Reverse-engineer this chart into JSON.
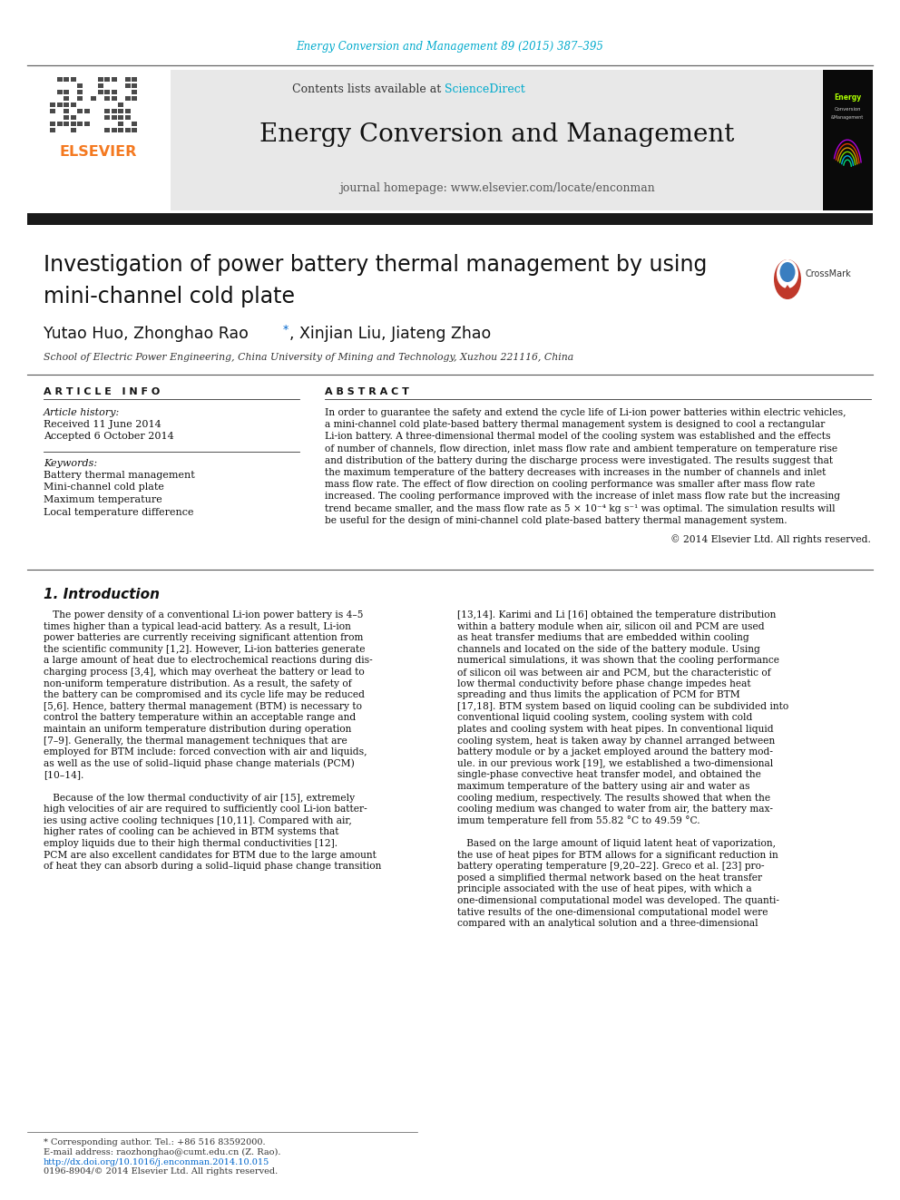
{
  "journal_ref": "Energy Conversion and Management 89 (2015) 387–395",
  "journal_ref_color": "#00aacc",
  "contents_line": "Contents lists available at ",
  "sciencedirect": "ScienceDirect",
  "sciencedirect_color": "#00aacc",
  "journal_name": "Energy Conversion and Management",
  "journal_homepage": "journal homepage: www.elsevier.com/locate/enconman",
  "title_line1": "Investigation of power battery thermal management by using",
  "title_line2": "mini-channel cold plate",
  "authors_left": "Yutao Huo, Zhonghao Rao",
  "authors_right": ", Xinjian Liu, Jiateng Zhao",
  "affiliation": "School of Electric Power Engineering, China University of Mining and Technology, Xuzhou 221116, China",
  "article_info_header": "A R T I C L E   I N F O",
  "abstract_header": "A B S T R A C T",
  "article_history_label": "Article history:",
  "received": "Received 11 June 2014",
  "accepted": "Accepted 6 October 2014",
  "keywords_label": "Keywords:",
  "keywords": [
    "Battery thermal management",
    "Mini-channel cold plate",
    "Maximum temperature",
    "Local temperature difference"
  ],
  "abstract_lines": [
    "In order to guarantee the safety and extend the cycle life of Li-ion power batteries within electric vehicles,",
    "a mini-channel cold plate-based battery thermal management system is designed to cool a rectangular",
    "Li-ion battery. A three-dimensional thermal model of the cooling system was established and the effects",
    "of number of channels, flow direction, inlet mass flow rate and ambient temperature on temperature rise",
    "and distribution of the battery during the discharge process were investigated. The results suggest that",
    "the maximum temperature of the battery decreases with increases in the number of channels and inlet",
    "mass flow rate. The effect of flow direction on cooling performance was smaller after mass flow rate",
    "increased. The cooling performance improved with the increase of inlet mass flow rate but the increasing",
    "trend became smaller, and the mass flow rate as 5 × 10⁻⁴ kg s⁻¹ was optimal. The simulation results will",
    "be useful for the design of mini-channel cold plate-based battery thermal management system."
  ],
  "copyright": "© 2014 Elsevier Ltd. All rights reserved.",
  "intro_header": "1. Introduction",
  "intro_col1_lines": [
    "   The power density of a conventional Li-ion power battery is 4–5",
    "times higher than a typical lead-acid battery. As a result, Li-ion",
    "power batteries are currently receiving significant attention from",
    "the scientific community [1,2]. However, Li-ion batteries generate",
    "a large amount of heat due to electrochemical reactions during dis-",
    "charging process [3,4], which may overheat the battery or lead to",
    "non-uniform temperature distribution. As a result, the safety of",
    "the battery can be compromised and its cycle life may be reduced",
    "[5,6]. Hence, battery thermal management (BTM) is necessary to",
    "control the battery temperature within an acceptable range and",
    "maintain an uniform temperature distribution during operation",
    "[7–9]. Generally, the thermal management techniques that are",
    "employed for BTM include: forced convection with air and liquids,",
    "as well as the use of solid–liquid phase change materials (PCM)",
    "[10–14].",
    "",
    "   Because of the low thermal conductivity of air [15], extremely",
    "high velocities of air are required to sufficiently cool Li-ion batter-",
    "ies using active cooling techniques [10,11]. Compared with air,",
    "higher rates of cooling can be achieved in BTM systems that",
    "employ liquids due to their high thermal conductivities [12].",
    "PCM are also excellent candidates for BTM due to the large amount",
    "of heat they can absorb during a solid–liquid phase change transition"
  ],
  "intro_col2_lines": [
    "[13,14]. Karimi and Li [16] obtained the temperature distribution",
    "within a battery module when air, silicon oil and PCM are used",
    "as heat transfer mediums that are embedded within cooling",
    "channels and located on the side of the battery module. Using",
    "numerical simulations, it was shown that the cooling performance",
    "of silicon oil was between air and PCM, but the characteristic of",
    "low thermal conductivity before phase change impedes heat",
    "spreading and thus limits the application of PCM for BTM",
    "[17,18]. BTM system based on liquid cooling can be subdivided into",
    "conventional liquid cooling system, cooling system with cold",
    "plates and cooling system with heat pipes. In conventional liquid",
    "cooling system, heat is taken away by channel arranged between",
    "battery module or by a jacket employed around the battery mod-",
    "ule. in our previous work [19], we established a two-dimensional",
    "single-phase convective heat transfer model, and obtained the",
    "maximum temperature of the battery using air and water as",
    "cooling medium, respectively. The results showed that when the",
    "cooling medium was changed to water from air, the battery max-",
    "imum temperature fell from 55.82 °C to 49.59 °C.",
    "",
    "   Based on the large amount of liquid latent heat of vaporization,",
    "the use of heat pipes for BTM allows for a significant reduction in",
    "battery operating temperature [9,20–22]. Greco et al. [23] pro-",
    "posed a simplified thermal network based on the heat transfer",
    "principle associated with the use of heat pipes, with which a",
    "one-dimensional computational model was developed. The quanti-",
    "tative results of the one-dimensional computational model were",
    "compared with an analytical solution and a three-dimensional"
  ],
  "footnote_star": "* Corresponding author. Tel.: +86 516 83592000.",
  "footnote_email": "E-mail address: raozhonghao@cumt.edu.cn (Z. Rao).",
  "footnote_doi": "http://dx.doi.org/10.1016/j.enconman.2014.10.015",
  "footnote_issn": "0196-8904/© 2014 Elsevier Ltd. All rights reserved.",
  "link_color": "#0066cc",
  "bg_color": "#ffffff",
  "header_bg": "#e8e8e8",
  "black_bar_color": "#1a1a1a",
  "elsevier_orange": "#f47920"
}
